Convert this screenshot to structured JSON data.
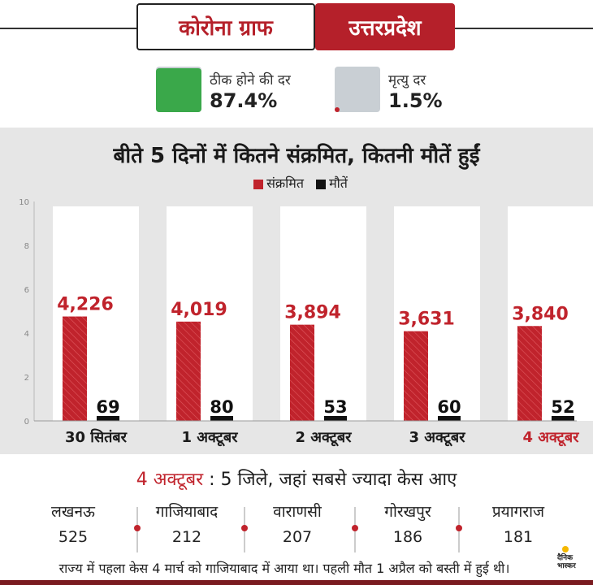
{
  "header": {
    "title": "कोरोना ग्राफ",
    "state": "उत्तरप्रदेश"
  },
  "stats": {
    "recovery_label": "ठीक होने की दर",
    "recovery_value": "87.4%",
    "recovery_fraction": 0.874,
    "death_label": "मृत्यु दर",
    "death_value": "1.5%",
    "death_fraction": 0.015
  },
  "colors": {
    "brand_red": "#b5202a",
    "infected": "#c0232c",
    "deaths": "#111111",
    "recovery_green": "#3aa84a",
    "gray_box": "#c9cfd4"
  },
  "chart_data": {
    "type": "bar",
    "title": "बीते 5 दिनों में कितने संक्रमित, कितनी मौतें हुईं",
    "categories": [
      "30 सितंबर",
      "1 अक्टूबर",
      "2 अक्टूबर",
      "3 अक्टूबर",
      "4 अक्टूबर"
    ],
    "highlight_category": "4 अक्टूबर",
    "series": [
      {
        "name": "संक्रमित",
        "values": [
          4226,
          4019,
          3894,
          3631,
          3840
        ],
        "labels": [
          "4,226",
          "4,019",
          "3,894",
          "3,631",
          "3,840"
        ]
      },
      {
        "name": "मौतें",
        "values": [
          69,
          80,
          53,
          60,
          52
        ],
        "labels": [
          "69",
          "80",
          "53",
          "60",
          "52"
        ]
      }
    ],
    "yticks": [
      "0",
      "2",
      "4",
      "6",
      "8",
      "10"
    ],
    "ylim": [
      0,
      10
    ],
    "legend_position": "top-center"
  },
  "districts": {
    "date": "4 अक्टूबर",
    "heading_rest": ": 5 जिले, जहां सबसे ज्यादा केस आए",
    "items": [
      {
        "name": "लखनऊ",
        "cases": "525"
      },
      {
        "name": "गाजियाबाद",
        "cases": "212"
      },
      {
        "name": "वाराणसी",
        "cases": "207"
      },
      {
        "name": "गोरखपुर",
        "cases": "186"
      },
      {
        "name": "प्रयागराज",
        "cases": "181"
      }
    ]
  },
  "footer": {
    "note": "राज्य में पहला केस 4 मार्च को गाजियाबाद में आया था। पहली मौत 1 अप्रैल को बस्ती में हुई थी।",
    "logo_text": "दैनिक भास्कर"
  }
}
